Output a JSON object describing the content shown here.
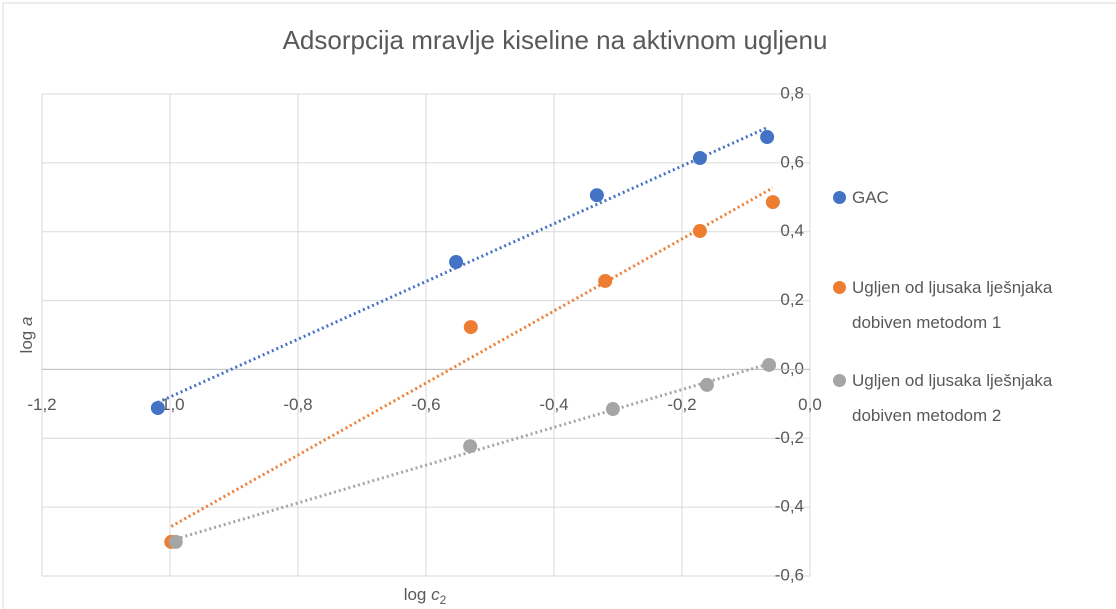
{
  "chart_data": {
    "type": "scatter",
    "title": "Adsorpcija mravlje kiseline na aktivnom ugljenu",
    "xlabel": [
      "log",
      "c",
      "2"
    ],
    "ylabel": [
      "log",
      "a"
    ],
    "xlim": [
      -1.2,
      0.0
    ],
    "ylim": [
      -0.6,
      0.8
    ],
    "xticks": [
      {
        "value": -1.2,
        "label": "-1,2"
      },
      {
        "value": -1.0,
        "label": "-1,0"
      },
      {
        "value": -0.8,
        "label": "-0,8"
      },
      {
        "value": -0.6,
        "label": "-0,6"
      },
      {
        "value": -0.4,
        "label": "-0,4"
      },
      {
        "value": -0.2,
        "label": "-0,2"
      },
      {
        "value": 0.0,
        "label": "0,0"
      }
    ],
    "yticks": [
      {
        "value": -0.6,
        "label": "-0,6"
      },
      {
        "value": -0.4,
        "label": "-0,4"
      },
      {
        "value": -0.2,
        "label": "-0,2"
      },
      {
        "value": 0.0,
        "label": "0,0"
      },
      {
        "value": 0.2,
        "label": "0,2"
      },
      {
        "value": 0.4,
        "label": "0,4"
      },
      {
        "value": 0.6,
        "label": "0,6"
      },
      {
        "value": 0.8,
        "label": "0,8"
      }
    ],
    "grid": true,
    "legend": "right",
    "trendline": "linear",
    "series": [
      {
        "name": "GAC",
        "color": "#4472c4",
        "x": [
          -1.019,
          -0.553,
          -0.333,
          -0.172,
          -0.067
        ],
        "values": [
          -0.112,
          0.312,
          0.506,
          0.614,
          0.675
        ]
      },
      {
        "name": "Ugljen od ljusaka lješnjaka dobiven metodom 1",
        "color": "#ed7d31",
        "x": [
          -0.998,
          -0.53,
          -0.32,
          -0.172,
          -0.058
        ],
        "values": [
          -0.501,
          0.123,
          0.257,
          0.402,
          0.486
        ]
      },
      {
        "name": "Ugljen od ljusaka lješnjaka dobiven metodom 2",
        "color": "#a5a5a5",
        "x": [
          -0.991,
          -0.531,
          -0.308,
          -0.161,
          -0.064
        ],
        "values": [
          -0.501,
          -0.223,
          -0.115,
          -0.045,
          0.013
        ]
      }
    ]
  }
}
